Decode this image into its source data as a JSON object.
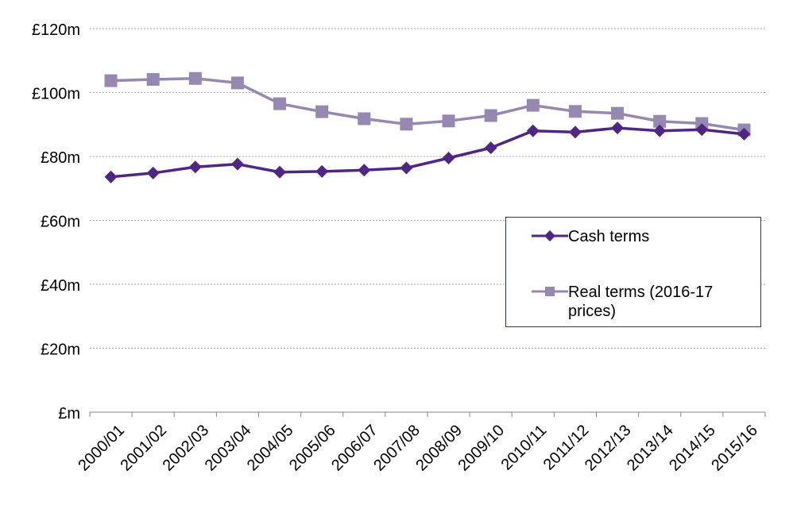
{
  "chart_data": {
    "type": "line",
    "title": "",
    "xlabel": "",
    "ylabel": "",
    "categories": [
      "2000/01",
      "2001/02",
      "2002/03",
      "2003/04",
      "2004/05",
      "2005/06",
      "2006/07",
      "2007/08",
      "2008/09",
      "2009/10",
      "2010/11",
      "2011/12",
      "2012/13",
      "2013/14",
      "2014/15",
      "2015/16"
    ],
    "ylim": [
      0,
      120
    ],
    "yticks": [
      0,
      20,
      40,
      60,
      80,
      100,
      120
    ],
    "ytick_labels": [
      "£m",
      "£20m",
      "£40m",
      "£60m",
      "£80m",
      "£100m",
      "£120m"
    ],
    "grid": true,
    "legend_position": "right",
    "series": [
      {
        "name": "Cash terms",
        "color": "#4f2683",
        "marker": "diamond",
        "values": [
          73.6,
          74.8,
          76.7,
          77.6,
          75.1,
          75.3,
          75.7,
          76.4,
          79.5,
          82.7,
          88.0,
          87.6,
          88.9,
          88.0,
          88.4,
          87.0
        ]
      },
      {
        "name": "Real terms (2016-17 prices)",
        "color": "#9688b0",
        "marker": "square",
        "values": [
          103.7,
          104.1,
          104.4,
          103.0,
          96.5,
          94.0,
          91.8,
          90.1,
          91.1,
          92.8,
          96.0,
          94.1,
          93.5,
          91.0,
          90.3,
          88.3
        ]
      }
    ]
  }
}
